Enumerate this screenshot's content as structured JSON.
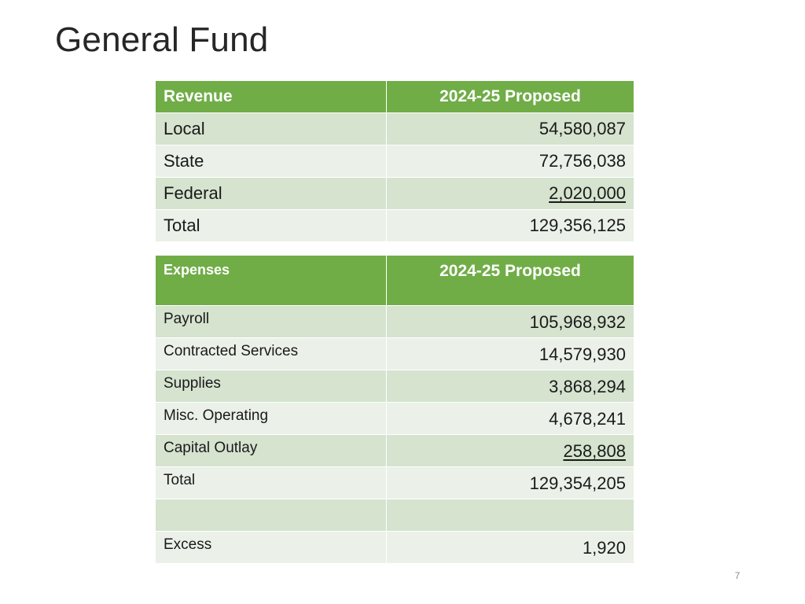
{
  "title": "General Fund",
  "revenue": {
    "header": {
      "label": "Revenue",
      "column": "2024-25 Proposed"
    },
    "rows": [
      {
        "label": "Local",
        "value": "54,580,087"
      },
      {
        "label": "State",
        "value": "72,756,038"
      },
      {
        "label": "Federal",
        "value": "2,020,000"
      },
      {
        "label": "Total",
        "value": "129,356,125"
      }
    ]
  },
  "expenses": {
    "header": {
      "label": "Expenses",
      "column": "2024-25 Proposed"
    },
    "rows": [
      {
        "label": "Payroll",
        "value": "105,968,932"
      },
      {
        "label": "Contracted Services",
        "value": "14,579,930"
      },
      {
        "label": "Supplies",
        "value": "3,868,294"
      },
      {
        "label": "Misc. Operating",
        "value": "4,678,241"
      },
      {
        "label": "Capital Outlay",
        "value": "258,808"
      },
      {
        "label": "Total",
        "value": "129,354,205"
      },
      {
        "label": "",
        "value": ""
      },
      {
        "label": "Excess",
        "value": "1,920"
      }
    ]
  },
  "colors": {
    "header_green": "#70ad47",
    "row_band_dark": "#d5e3cf",
    "row_band_light": "#ebf1e9"
  },
  "page_number": "7"
}
